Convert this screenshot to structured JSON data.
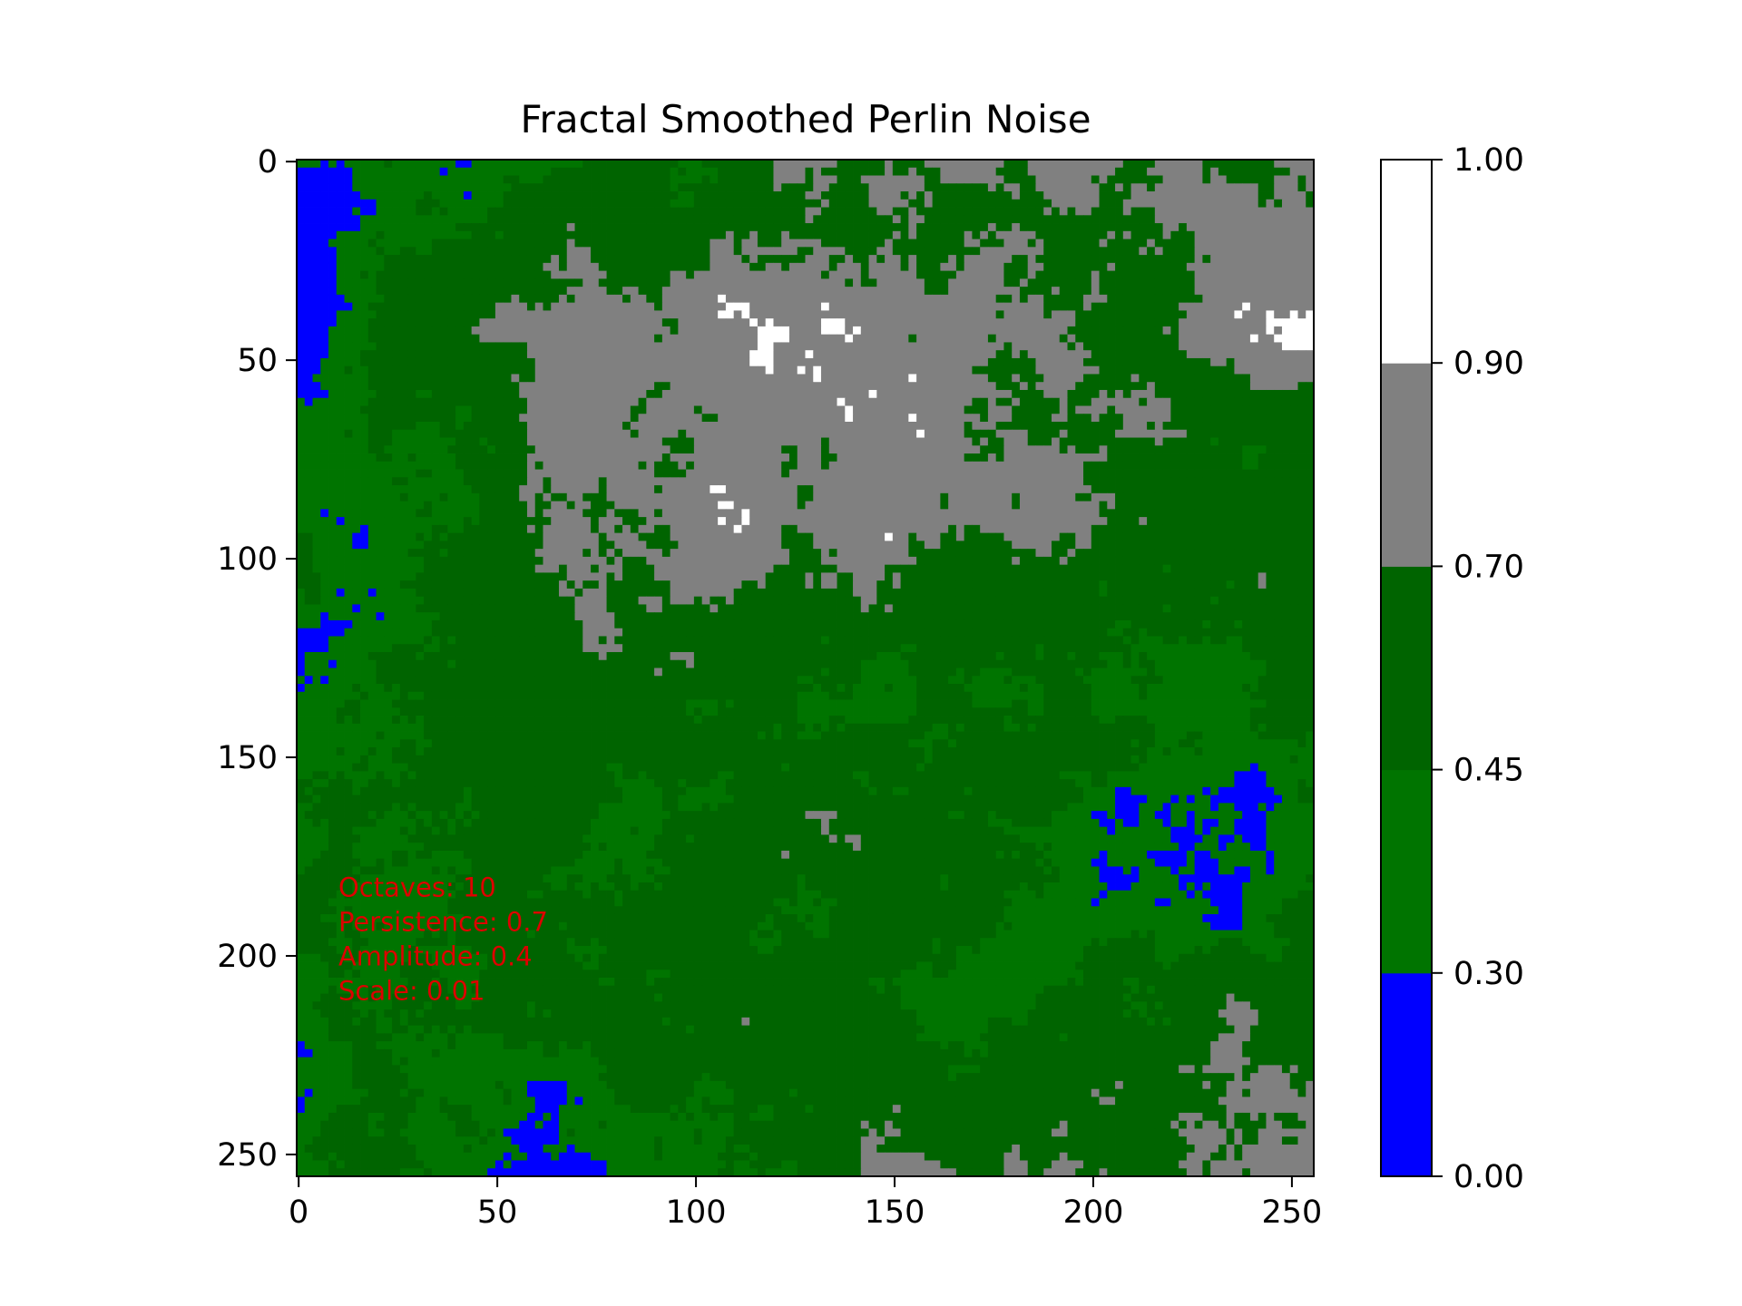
{
  "chart_data": {
    "type": "heatmap",
    "title": "Fractal Smoothed Perlin Noise",
    "xlabel": "",
    "ylabel": "",
    "grid_size": [
      256,
      256
    ],
    "xlim": [
      -0.5,
      255.5
    ],
    "ylim": [
      255.5,
      -0.5
    ],
    "x_ticks": [
      0,
      50,
      100,
      150,
      200,
      250
    ],
    "y_ticks": [
      0,
      50,
      100,
      150,
      200,
      250
    ],
    "x_tick_labels": [
      "0",
      "50",
      "100",
      "150",
      "200",
      "250"
    ],
    "y_tick_labels": [
      "0",
      "50",
      "100",
      "150",
      "200",
      "250"
    ],
    "grid": false,
    "colorbar": {
      "position": "right",
      "boundaries": [
        0.0,
        0.3,
        0.45,
        0.7,
        0.9,
        1.0
      ],
      "tick_labels": [
        "0.00",
        "0.30",
        "0.45",
        "0.70",
        "0.90",
        "1.00"
      ],
      "colors": [
        "#0000ff",
        "#007400",
        "#006400",
        "#808080",
        "#ffffff"
      ]
    },
    "annotation": {
      "lines": [
        "Octaves: 10",
        "Persistence: 0.7",
        "Amplitude: 0.4",
        "Scale: 0.01"
      ],
      "color": "#dd0000",
      "anchor_data": [
        10,
        185
      ]
    },
    "noise_params": {
      "octaves": 10,
      "persistence": 0.7,
      "amplitude": 0.4,
      "scale": 0.01
    }
  }
}
